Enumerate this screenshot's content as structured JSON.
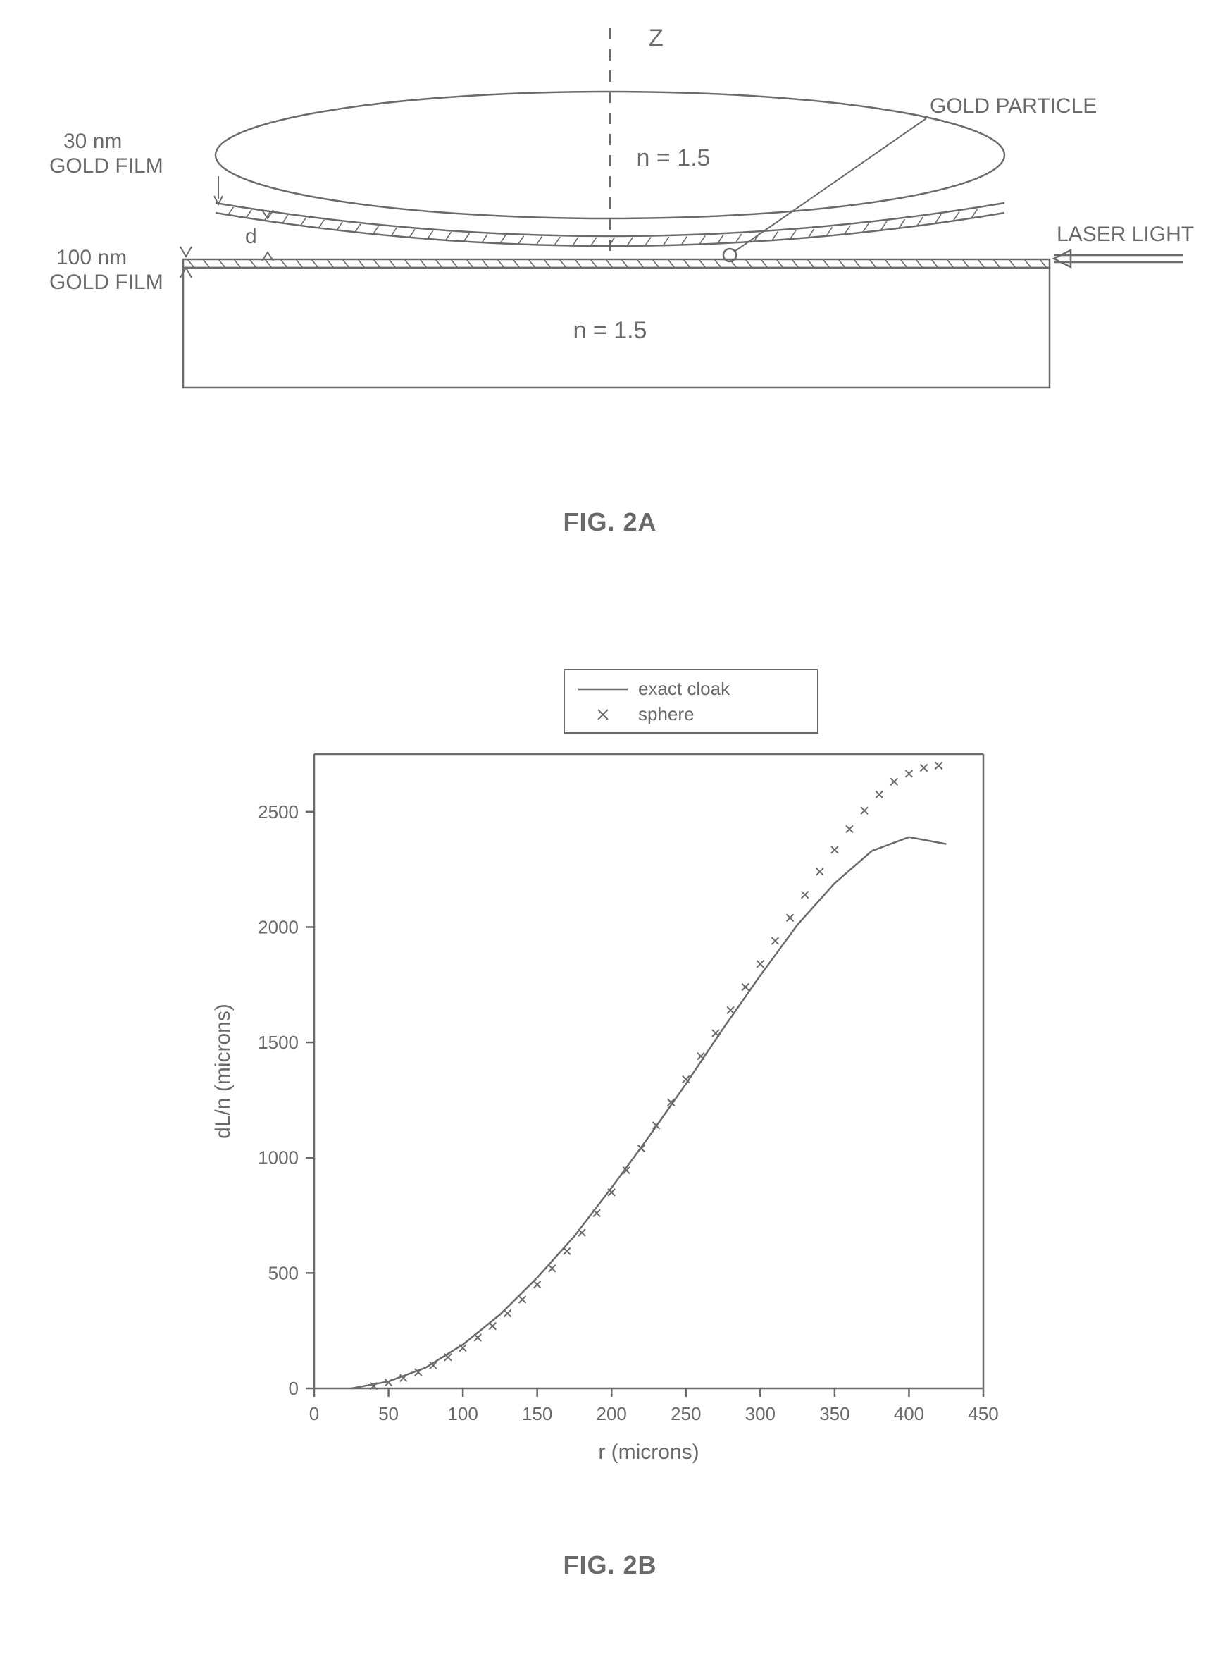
{
  "figure2a": {
    "caption": "FIG. 2A",
    "labels": {
      "top_film": "30 nm\nGOLD FILM",
      "bottom_film": "100 nm\nGOLD FILM",
      "z_axis": "Z",
      "gap": "d",
      "particle": "GOLD PARTICLE",
      "light": "LASER LIGHT",
      "n_upper": "n = 1.5",
      "n_lower": "n = 1.5"
    },
    "colors": {
      "stroke": "#6a6a6a",
      "text": "#6a6a6a",
      "background": "#ffffff"
    },
    "stroke_width": 2.5
  },
  "figure2b": {
    "caption": "FIG. 2B",
    "type": "line+scatter",
    "xlabel": "r (microns)",
    "ylabel": "dL/n (microns)",
    "xlim": [
      0,
      450
    ],
    "ylim": [
      0,
      2750
    ],
    "xticks": [
      0,
      50,
      100,
      150,
      200,
      250,
      300,
      350,
      400,
      450
    ],
    "yticks": [
      0,
      500,
      1000,
      1500,
      2000,
      2500
    ],
    "ytick_labels": [
      "0",
      "500",
      "1000",
      "1500",
      "2000",
      "2500"
    ],
    "legend": {
      "items": [
        {
          "label": "exact cloak",
          "type": "line",
          "color": "#6a6a6a"
        },
        {
          "label": "sphere",
          "type": "marker",
          "marker": "x",
          "color": "#6a6a6a"
        }
      ]
    },
    "series_line": {
      "name": "exact cloak",
      "color": "#6a6a6a",
      "width": 2.5,
      "x": [
        25,
        50,
        75,
        100,
        125,
        150,
        175,
        200,
        225,
        250,
        275,
        300,
        325,
        350,
        375,
        400,
        425
      ],
      "y": [
        0,
        30,
        90,
        190,
        320,
        480,
        660,
        870,
        1090,
        1320,
        1560,
        1790,
        2010,
        2190,
        2330,
        2390,
        2360
      ]
    },
    "series_scatter": {
      "name": "sphere",
      "color": "#6a6a6a",
      "marker": "x",
      "size": 10,
      "x": [
        40,
        50,
        60,
        70,
        80,
        90,
        100,
        110,
        120,
        130,
        140,
        150,
        160,
        170,
        180,
        190,
        200,
        210,
        220,
        230,
        240,
        250,
        260,
        270,
        280,
        290,
        300,
        310,
        320,
        330,
        340,
        350,
        360,
        370,
        380,
        390,
        400,
        410,
        420
      ],
      "y": [
        10,
        25,
        45,
        70,
        100,
        135,
        175,
        220,
        270,
        325,
        385,
        450,
        520,
        595,
        675,
        760,
        850,
        945,
        1040,
        1140,
        1240,
        1340,
        1440,
        1540,
        1640,
        1740,
        1840,
        1940,
        2040,
        2140,
        2240,
        2335,
        2425,
        2505,
        2575,
        2630,
        2665,
        2690,
        2700
      ]
    },
    "colors": {
      "axis": "#6a6a6a",
      "text": "#6a6a6a",
      "legend_border": "#6a6a6a",
      "background": "#ffffff"
    },
    "label_fontsize": 30,
    "tick_fontsize": 26,
    "legend_fontsize": 26
  }
}
